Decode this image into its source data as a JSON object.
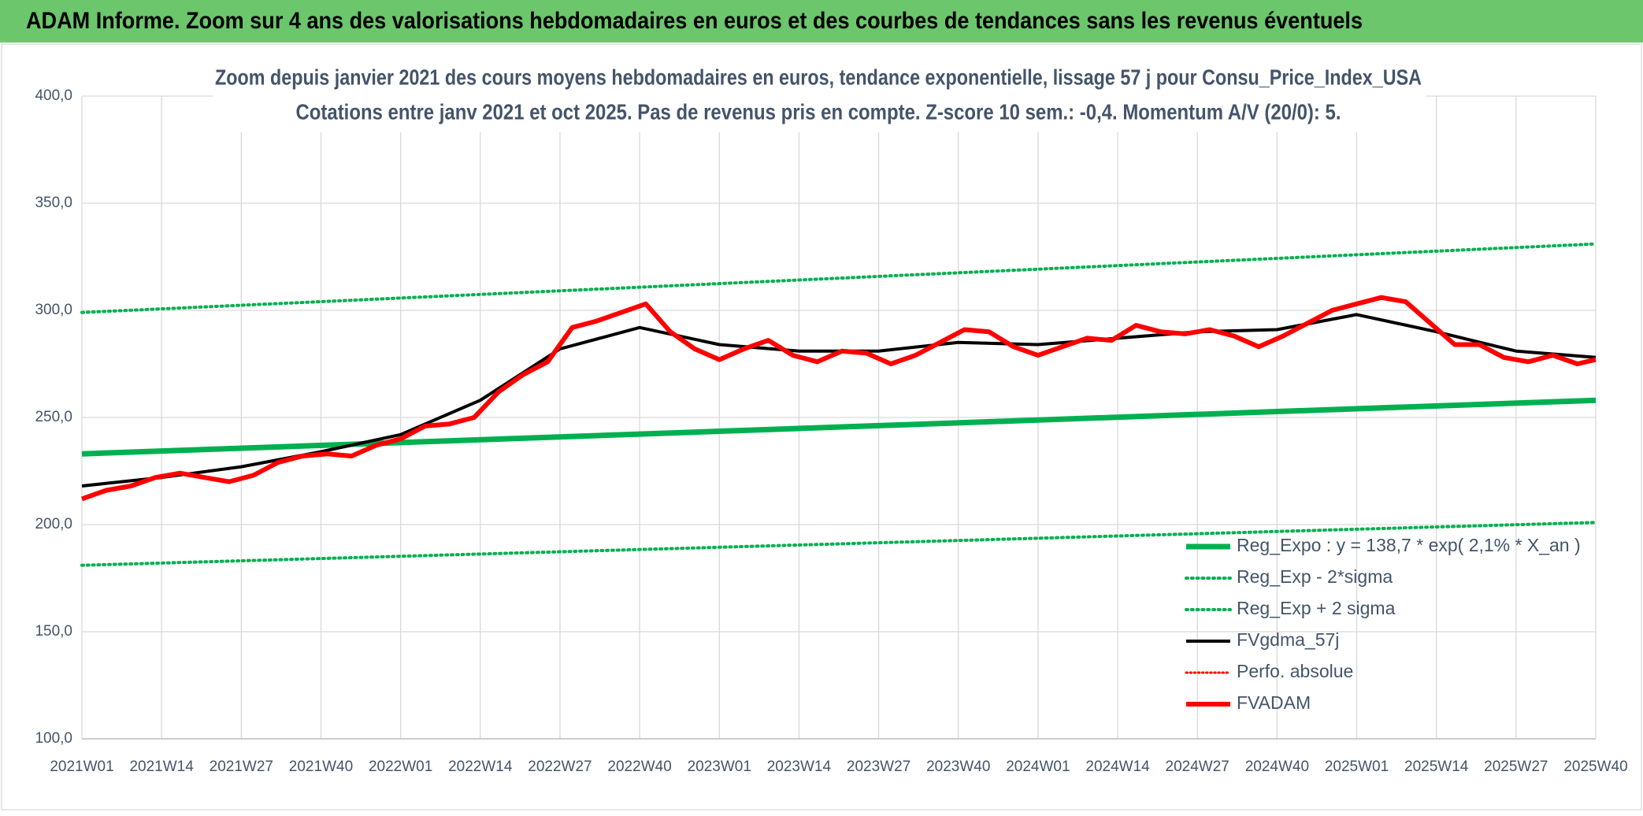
{
  "header": {
    "title": "ADAM Informe. Zoom sur 4 ans des valorisations hebdomadaires en euros et des courbes de tendances sans les revenus éventuels"
  },
  "chart_data": {
    "type": "line",
    "title": "Zoom depuis janvier 2021 des cours moyens hebdomadaires en euros, tendance exponentielle, lissage 57 j pour Consu_Price_Index_USA",
    "subtitle": "Cotations entre janv 2021 et oct 2025. Pas de revenus pris en compte. Z-score 10 sem.: -0,4. Momentum A/V (20/0): 5.",
    "xticks": [
      "2021W01",
      "2021W14",
      "2021W27",
      "2021W40",
      "2022W01",
      "2022W14",
      "2022W27",
      "2022W40",
      "2023W01",
      "2023W14",
      "2023W27",
      "2023W40",
      "2024W01",
      "2024W14",
      "2024W27",
      "2024W40",
      "2025W01",
      "2025W14",
      "2025W27",
      "2025W40"
    ],
    "ylim": [
      100,
      400
    ],
    "yticks": [
      {
        "value": 100,
        "label": "100,0"
      },
      {
        "value": 150,
        "label": "150,0"
      },
      {
        "value": 200,
        "label": "200,0"
      },
      {
        "value": 250,
        "label": "250,0"
      },
      {
        "value": 300,
        "label": "300,0"
      },
      {
        "value": 350,
        "label": "350,0"
      },
      {
        "value": 400,
        "label": "400,0"
      }
    ],
    "grid": true,
    "series": [
      {
        "name": "Reg_Expo : y = 138,7 * exp( 2,1% *  X_an )",
        "color": "#00b050",
        "style": "solid",
        "width": 7,
        "x": [
          "2021W01",
          "2025W40"
        ],
        "values": [
          233,
          258
        ]
      },
      {
        "name": "Reg_Exp - 2*sigma",
        "color": "#00b050",
        "style": "dotted",
        "width": 4,
        "x": [
          "2021W01",
          "2025W40"
        ],
        "values": [
          181,
          201
        ]
      },
      {
        "name": "Reg_Exp + 2 sigma",
        "color": "#00b050",
        "style": "dotted",
        "width": 4,
        "x": [
          "2021W01",
          "2025W40"
        ],
        "values": [
          299,
          331
        ]
      },
      {
        "name": "FVgdma_57j",
        "color": "#000000",
        "style": "solid",
        "width": 4,
        "x": [
          "2021W01",
          "2021W14",
          "2021W27",
          "2021W40",
          "2022W01",
          "2022W14",
          "2022W27",
          "2022W40",
          "2023W01",
          "2023W14",
          "2023W27",
          "2023W40",
          "2024W01",
          "2024W14",
          "2024W27",
          "2024W40",
          "2025W01",
          "2025W14",
          "2025W27",
          "2025W40"
        ],
        "values": [
          218,
          222,
          227,
          234,
          242,
          258,
          282,
          292,
          284,
          281,
          281,
          285,
          284,
          287,
          290,
          291,
          298,
          290,
          281,
          278
        ]
      },
      {
        "name": "Perfo. absolue",
        "color": "#ff0000",
        "style": "dotted",
        "width": 3,
        "x": [],
        "values": []
      },
      {
        "name": "FVADAM",
        "color": "#ff0000",
        "style": "solid",
        "width": 6,
        "x": [
          "2021W01",
          "2021W05",
          "2021W09",
          "2021W13",
          "2021W17",
          "2021W21",
          "2021W25",
          "2021W29",
          "2021W33",
          "2021W37",
          "2021W41",
          "2021W45",
          "2021W49",
          "2022W01",
          "2022W05",
          "2022W09",
          "2022W13",
          "2022W17",
          "2022W21",
          "2022W25",
          "2022W29",
          "2022W33",
          "2022W37",
          "2022W41",
          "2022W45",
          "2022W49",
          "2023W01",
          "2023W05",
          "2023W09",
          "2023W13",
          "2023W17",
          "2023W21",
          "2023W25",
          "2023W29",
          "2023W33",
          "2023W37",
          "2023W41",
          "2023W45",
          "2023W49",
          "2024W01",
          "2024W05",
          "2024W09",
          "2024W13",
          "2024W17",
          "2024W21",
          "2024W25",
          "2024W29",
          "2024W33",
          "2024W37",
          "2024W41",
          "2024W45",
          "2024W49",
          "2025W01",
          "2025W05",
          "2025W09",
          "2025W13",
          "2025W17",
          "2025W21",
          "2025W25",
          "2025W29",
          "2025W33",
          "2025W37",
          "2025W40"
        ],
        "values": [
          212,
          216,
          218,
          222,
          224,
          222,
          220,
          223,
          229,
          232,
          233,
          232,
          237,
          240,
          246,
          247,
          250,
          262,
          270,
          276,
          292,
          295,
          299,
          303,
          290,
          282,
          277,
          282,
          286,
          279,
          276,
          281,
          280,
          275,
          279,
          285,
          291,
          290,
          283,
          279,
          283,
          287,
          286,
          293,
          290,
          289,
          291,
          288,
          283,
          288,
          294,
          300,
          303,
          306,
          304,
          294,
          284,
          284,
          278,
          276,
          279,
          275,
          277
        ]
      }
    ]
  }
}
